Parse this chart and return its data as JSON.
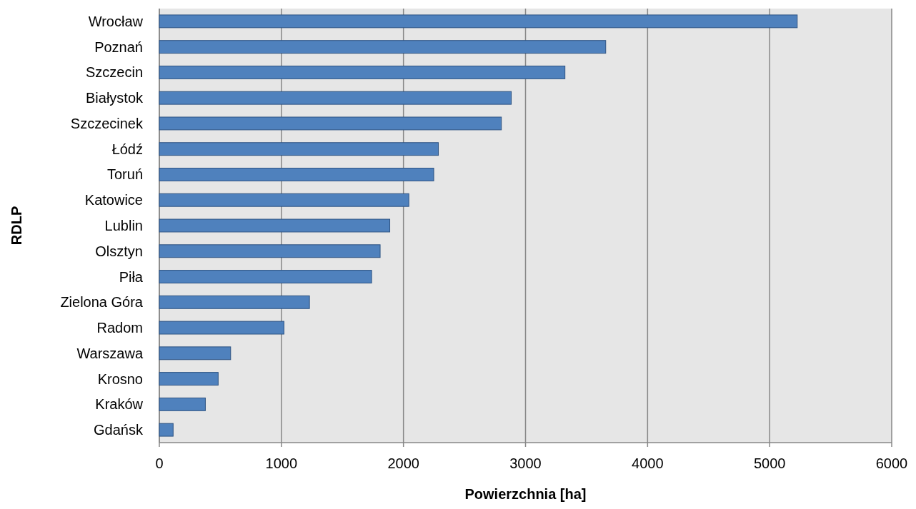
{
  "chart_data": {
    "type": "bar",
    "orientation": "horizontal",
    "xlabel": "Powierzchnia [ha]",
    "ylabel": "RDLP",
    "categories": [
      "Wrocław",
      "Poznań",
      "Szczecin",
      "Białystok",
      "Szczecinek",
      "Łódź",
      "Toruń",
      "Katowice",
      "Lublin",
      "Olsztyn",
      "Piła",
      "Zielona Góra",
      "Radom",
      "Warszawa",
      "Krosno",
      "Kraków",
      "Gdańsk"
    ],
    "values": [
      5226,
      3657,
      3323,
      2883,
      2802,
      2286,
      2248,
      2044,
      1888,
      1809,
      1739,
      1230,
      1021,
      584,
      482,
      377,
      113
    ],
    "color": "#4f81bd",
    "xlim": [
      0,
      6000
    ],
    "xticks": [
      0,
      1000,
      2000,
      3000,
      4000,
      5000,
      6000
    ],
    "grid": "x"
  }
}
